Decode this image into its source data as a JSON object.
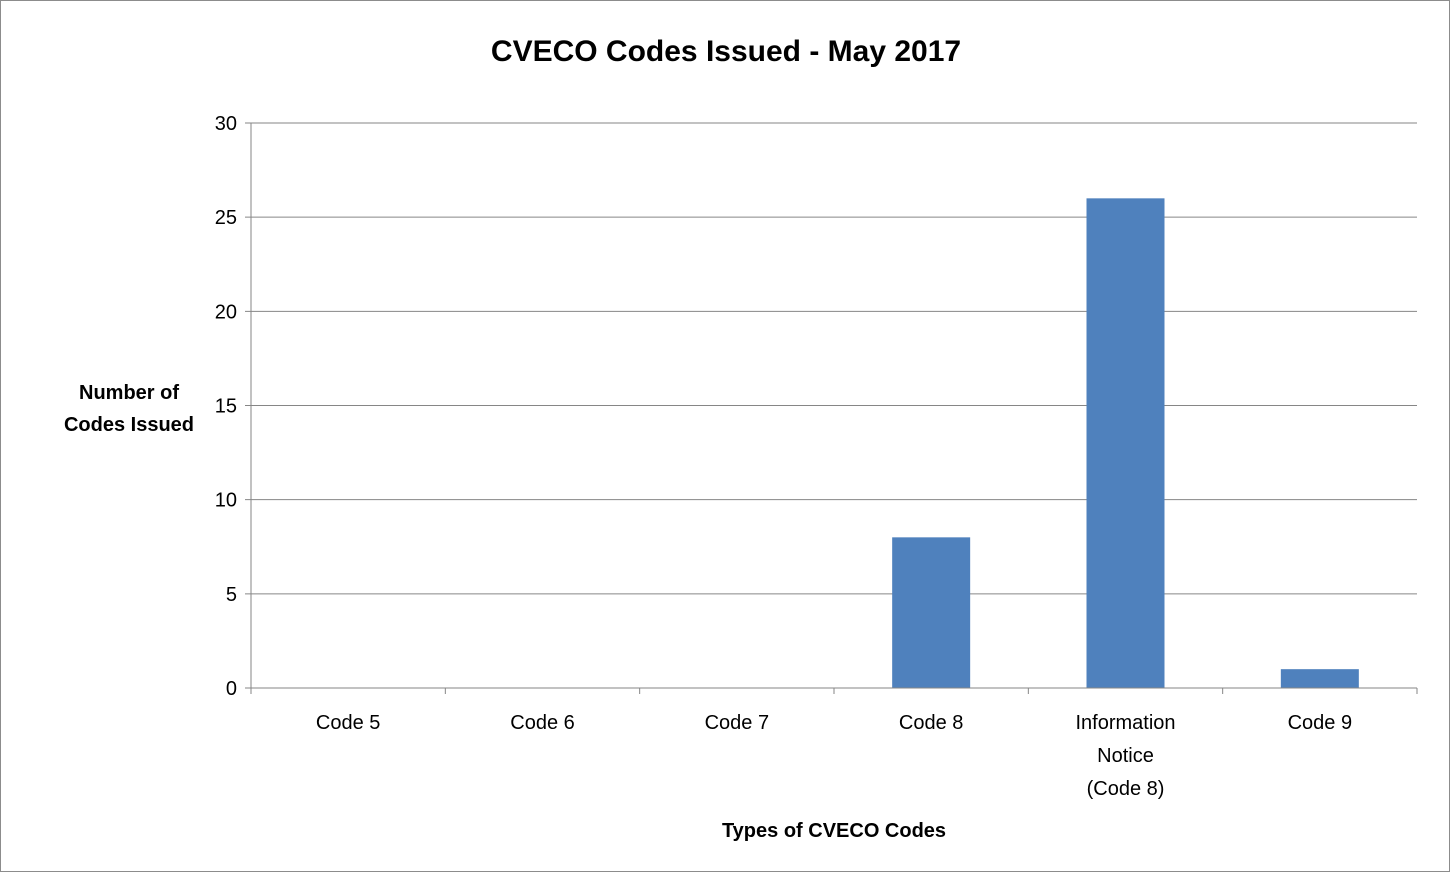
{
  "chart_data": {
    "type": "bar",
    "title": "CVECO Codes Issued - May 2017",
    "xlabel": "Types of CVECO Codes",
    "ylabel_lines": [
      "Number of",
      "Codes Issued"
    ],
    "categories": [
      [
        "Code 5"
      ],
      [
        "Code 6"
      ],
      [
        "Code 7"
      ],
      [
        "Code 8"
      ],
      [
        "Information",
        "Notice",
        "(Code 8)"
      ],
      [
        "Code 9"
      ]
    ],
    "values": [
      0,
      0,
      0,
      8,
      26,
      1
    ],
    "ylim": [
      0,
      30
    ],
    "yticks": [
      "0",
      "5",
      "10",
      "15",
      "20",
      "25",
      "30"
    ],
    "grid": true,
    "legend": "none",
    "colors": {
      "bar": "#4f81bd",
      "grid": "#868686",
      "axis": "#868686"
    }
  }
}
